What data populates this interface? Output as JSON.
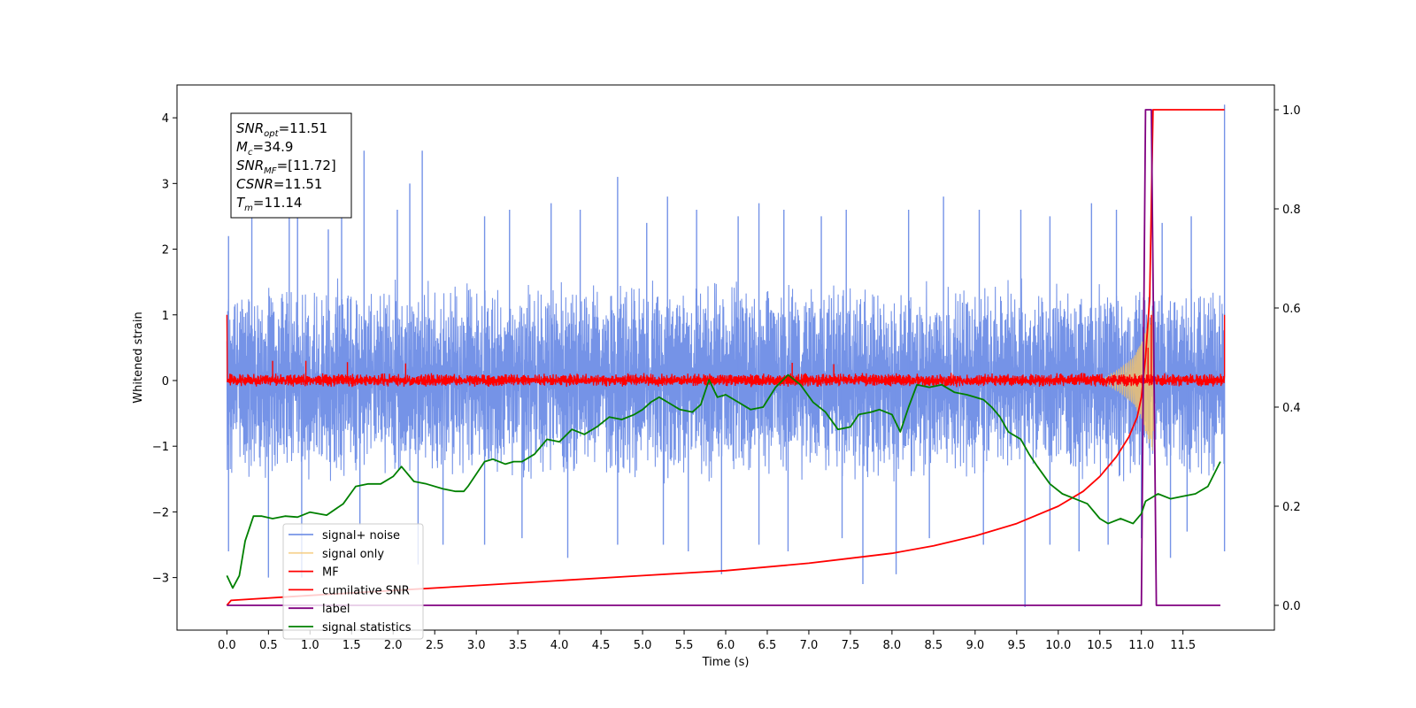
{
  "chart_data": {
    "type": "line",
    "title": "",
    "xlabel": "Time (s)",
    "ylabel": "Whitened strain",
    "xlim": [
      -0.6,
      12.6
    ],
    "ylim": [
      -3.8,
      4.5
    ],
    "y2lim": [
      -0.05,
      1.05
    ],
    "grid": false,
    "legend_position": "bottom-left",
    "x_ticks": [
      "0.0",
      "0.5",
      "1.0",
      "1.5",
      "2.0",
      "2.5",
      "3.0",
      "3.5",
      "4.0",
      "4.5",
      "5.0",
      "5.5",
      "6.0",
      "6.5",
      "7.0",
      "7.5",
      "8.0",
      "8.5",
      "9.0",
      "9.5",
      "10.0",
      "10.5",
      "11.0",
      "11.5"
    ],
    "y_ticks": [
      "−3",
      "−2",
      "−1",
      "0",
      "1",
      "2",
      "3",
      "4"
    ],
    "y2_ticks": [
      "0.0",
      "0.2",
      "0.4",
      "0.6",
      "0.8",
      "1.0"
    ],
    "colors": {
      "signal_noise": "#6a8ae6",
      "signal_only": "#f5c46a",
      "mf": "#ff0000",
      "cumulative_snr": "#ff0000",
      "label": "#800080",
      "signal_statistics": "#008000"
    },
    "legend": [
      {
        "key": "signal_noise",
        "label": "signal+ noise"
      },
      {
        "key": "signal_only",
        "label": "signal only"
      },
      {
        "key": "mf",
        "label": "MF"
      },
      {
        "key": "cumulative_snr",
        "label": "cumilative SNR"
      },
      {
        "key": "label",
        "label": "label"
      },
      {
        "key": "signal_statistics",
        "label": "signal statistics"
      }
    ],
    "annotation": [
      {
        "base": "SNR",
        "sub": "opt",
        "value": "=11.51"
      },
      {
        "base": "M",
        "sub": "c",
        "value": "=34.9"
      },
      {
        "base": "SNR",
        "sub": "MF",
        "value": "=[11.72]"
      },
      {
        "base": "CSNR",
        "sub": "",
        "value": "=11.51"
      },
      {
        "base": "T",
        "sub": "m",
        "value": "=11.14"
      }
    ],
    "series": [
      {
        "key": "signal_noise",
        "axis": "left",
        "style": "noise",
        "x_range": [
          0.0,
          12.0
        ],
        "baseline": 0.0,
        "typical_band": [
          -1.6,
          1.6
        ],
        "peaks_high": [
          [
            0.02,
            2.2
          ],
          [
            0.3,
            2.5
          ],
          [
            0.75,
            3.0
          ],
          [
            0.85,
            2.6
          ],
          [
            1.22,
            2.3
          ],
          [
            1.38,
            3.1
          ],
          [
            1.65,
            3.5
          ],
          [
            2.05,
            2.6
          ],
          [
            2.2,
            3.0
          ],
          [
            2.35,
            3.5
          ],
          [
            3.1,
            2.5
          ],
          [
            3.4,
            2.6
          ],
          [
            3.9,
            2.7
          ],
          [
            4.25,
            2.6
          ],
          [
            4.7,
            3.1
          ],
          [
            5.05,
            2.4
          ],
          [
            5.3,
            2.8
          ],
          [
            5.65,
            2.6
          ],
          [
            6.15,
            2.5
          ],
          [
            6.4,
            2.7
          ],
          [
            6.7,
            2.6
          ],
          [
            7.15,
            2.5
          ],
          [
            7.45,
            2.6
          ],
          [
            8.2,
            2.6
          ],
          [
            8.62,
            2.8
          ],
          [
            9.05,
            2.6
          ],
          [
            9.55,
            2.6
          ],
          [
            9.9,
            2.5
          ],
          [
            10.4,
            2.7
          ],
          [
            10.7,
            2.6
          ],
          [
            11.25,
            2.4
          ],
          [
            11.6,
            2.5
          ],
          [
            12.0,
            4.2
          ]
        ],
        "peaks_low": [
          [
            0.02,
            -2.6
          ],
          [
            0.5,
            -3.0
          ],
          [
            0.9,
            -3.0
          ],
          [
            1.6,
            -2.2
          ],
          [
            2.3,
            -2.8
          ],
          [
            2.6,
            -2.5
          ],
          [
            3.1,
            -2.5
          ],
          [
            3.55,
            -2.4
          ],
          [
            4.1,
            -2.7
          ],
          [
            4.7,
            -2.5
          ],
          [
            5.25,
            -2.5
          ],
          [
            5.55,
            -2.6
          ],
          [
            5.95,
            -2.95
          ],
          [
            6.4,
            -2.5
          ],
          [
            6.75,
            -2.6
          ],
          [
            7.4,
            -2.4
          ],
          [
            7.65,
            -3.1
          ],
          [
            8.05,
            -2.95
          ],
          [
            8.45,
            -2.4
          ],
          [
            9.1,
            -2.5
          ],
          [
            9.6,
            -3.45
          ],
          [
            9.9,
            -2.5
          ],
          [
            10.25,
            -2.6
          ],
          [
            10.6,
            -2.5
          ],
          [
            11.0,
            -2.4
          ],
          [
            11.35,
            -2.7
          ],
          [
            11.55,
            -2.3
          ],
          [
            12.0,
            -2.6
          ]
        ]
      },
      {
        "key": "signal_only",
        "axis": "left",
        "style": "chirp",
        "x": [
          10.5,
          10.7,
          10.9,
          11.0,
          11.1,
          11.14,
          11.16
        ],
        "amplitude": [
          0.0,
          0.15,
          0.35,
          0.6,
          1.0,
          1.1,
          0.0
        ]
      },
      {
        "key": "mf",
        "axis": "left",
        "style": "noise",
        "x_range": [
          0.0,
          12.0
        ],
        "baseline": 0.0,
        "typical_band": [
          -0.1,
          0.12
        ],
        "start_value": 1.0,
        "end_value": 1.0,
        "peaks": [
          [
            0.55,
            0.3
          ],
          [
            0.95,
            0.3
          ],
          [
            1.45,
            0.28
          ],
          [
            2.15,
            0.26
          ],
          [
            6.8,
            0.27
          ],
          [
            7.3,
            0.25
          ],
          [
            11.08,
            0.5
          ],
          [
            11.12,
            1.0
          ]
        ]
      },
      {
        "key": "cumulative_snr",
        "axis": "right",
        "x": [
          0.0,
          0.05,
          1.0,
          2.0,
          3.0,
          4.0,
          5.0,
          6.0,
          7.0,
          7.5,
          8.0,
          8.5,
          9.0,
          9.5,
          10.0,
          10.3,
          10.5,
          10.7,
          10.85,
          10.95,
          11.0,
          11.05,
          11.1,
          11.14,
          11.2,
          12.0
        ],
        "y": [
          0.0,
          0.01,
          0.02,
          0.03,
          0.04,
          0.05,
          0.06,
          0.07,
          0.085,
          0.095,
          0.105,
          0.12,
          0.14,
          0.165,
          0.2,
          0.23,
          0.26,
          0.3,
          0.34,
          0.38,
          0.42,
          0.5,
          0.62,
          1.0,
          1.0,
          1.0
        ]
      },
      {
        "key": "label",
        "axis": "right",
        "x": [
          0.0,
          11.0,
          11.05,
          11.12,
          11.18,
          11.95
        ],
        "y": [
          0.0,
          0.0,
          1.0,
          1.0,
          0.0,
          0.0
        ]
      },
      {
        "key": "signal_statistics",
        "axis": "right",
        "x": [
          0.0,
          0.07,
          0.15,
          0.22,
          0.32,
          0.42,
          0.55,
          0.7,
          0.85,
          1.0,
          1.2,
          1.4,
          1.55,
          1.7,
          1.85,
          2.0,
          2.1,
          2.25,
          2.4,
          2.6,
          2.75,
          2.85,
          2.9,
          3.0,
          3.1,
          3.2,
          3.35,
          3.45,
          3.55,
          3.7,
          3.85,
          4.0,
          4.15,
          4.3,
          4.45,
          4.6,
          4.75,
          4.9,
          5.0,
          5.1,
          5.2,
          5.3,
          5.45,
          5.6,
          5.7,
          5.8,
          5.9,
          6.0,
          6.15,
          6.3,
          6.45,
          6.6,
          6.75,
          6.9,
          7.05,
          7.2,
          7.35,
          7.5,
          7.6,
          7.75,
          7.85,
          8.0,
          8.1,
          8.2,
          8.3,
          8.45,
          8.6,
          8.75,
          8.9,
          9.0,
          9.1,
          9.2,
          9.3,
          9.4,
          9.55,
          9.65,
          9.75,
          9.9,
          10.05,
          10.2,
          10.35,
          10.5,
          10.6,
          10.75,
          10.9,
          11.0,
          11.05,
          11.1,
          11.2,
          11.35,
          11.5,
          11.65,
          11.8,
          11.95
        ],
        "y": [
          0.06,
          0.035,
          0.06,
          0.13,
          0.18,
          0.18,
          0.175,
          0.18,
          0.178,
          0.188,
          0.182,
          0.205,
          0.24,
          0.245,
          0.245,
          0.26,
          0.28,
          0.25,
          0.245,
          0.235,
          0.23,
          0.23,
          0.24,
          0.265,
          0.29,
          0.295,
          0.285,
          0.29,
          0.29,
          0.305,
          0.335,
          0.33,
          0.355,
          0.345,
          0.36,
          0.38,
          0.375,
          0.385,
          0.395,
          0.41,
          0.42,
          0.41,
          0.395,
          0.39,
          0.405,
          0.455,
          0.42,
          0.425,
          0.41,
          0.395,
          0.4,
          0.44,
          0.465,
          0.445,
          0.41,
          0.39,
          0.355,
          0.36,
          0.385,
          0.39,
          0.395,
          0.385,
          0.35,
          0.4,
          0.445,
          0.44,
          0.445,
          0.43,
          0.425,
          0.42,
          0.415,
          0.4,
          0.38,
          0.35,
          0.335,
          0.305,
          0.28,
          0.245,
          0.225,
          0.215,
          0.205,
          0.175,
          0.165,
          0.175,
          0.165,
          0.185,
          0.21,
          0.215,
          0.225,
          0.215,
          0.22,
          0.225,
          0.24,
          0.29
        ]
      }
    ]
  }
}
